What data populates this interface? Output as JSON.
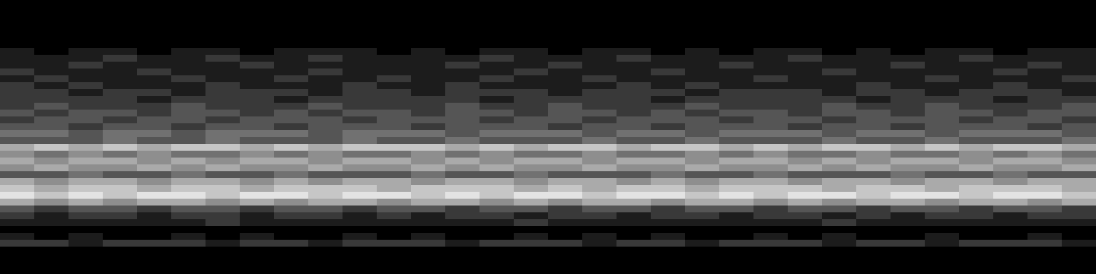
{
  "chart_data": {
    "type": "heatmap",
    "tick_labels": false,
    "colors": [
      "#000000",
      "#ffffff"
    ],
    "zlim": [
      0,
      9
    ],
    "cells": [
      [
        0,
        0,
        0,
        0,
        0,
        0,
        0,
        0,
        0,
        0,
        0,
        0,
        0,
        0,
        0,
        0,
        0,
        0,
        0,
        0,
        0,
        0,
        0,
        0,
        0,
        0,
        0,
        0,
        0,
        0,
        0,
        0
      ],
      [
        0,
        0,
        0,
        0,
        0,
        0,
        0,
        0,
        0,
        0,
        0,
        0,
        0,
        0,
        0,
        0,
        0,
        0,
        0,
        0,
        0,
        0,
        0,
        0,
        0,
        0,
        0,
        0,
        0,
        0,
        0,
        0
      ],
      [
        0,
        0,
        0,
        0,
        0,
        0,
        0,
        0,
        0,
        0,
        0,
        0,
        0,
        0,
        0,
        0,
        0,
        0,
        0,
        0,
        0,
        0,
        0,
        0,
        0,
        0,
        0,
        0,
        0,
        0,
        0,
        0
      ],
      [
        0,
        0,
        0,
        0,
        0,
        0,
        0,
        0,
        0,
        0,
        0,
        0,
        0,
        0,
        0,
        0,
        0,
        0,
        0,
        0,
        0,
        0,
        0,
        0,
        0,
        0,
        0,
        0,
        0,
        0,
        0,
        0
      ],
      [
        0,
        0,
        0,
        0,
        0,
        0,
        0,
        0,
        0,
        0,
        0,
        0,
        0,
        0,
        0,
        0,
        0,
        0,
        0,
        0,
        0,
        0,
        0,
        0,
        0,
        0,
        0,
        0,
        0,
        0,
        0,
        0
      ],
      [
        0,
        0,
        0,
        0,
        0,
        0,
        0,
        0,
        0,
        0,
        0,
        0,
        0,
        0,
        0,
        0,
        0,
        0,
        0,
        0,
        0,
        0,
        0,
        0,
        0,
        0,
        0,
        0,
        0,
        0,
        0,
        0
      ],
      [
        0,
        0,
        0,
        0,
        0,
        0,
        0,
        0,
        0,
        0,
        0,
        0,
        0,
        0,
        0,
        0,
        0,
        0,
        0,
        0,
        0,
        0,
        0,
        0,
        0,
        0,
        0,
        0,
        0,
        0,
        0,
        0
      ],
      [
        1,
        0,
        1,
        1,
        0,
        1,
        1,
        0,
        1,
        1,
        1,
        0,
        1,
        0,
        1,
        1,
        0,
        1,
        1,
        0,
        1,
        0,
        1,
        1,
        0,
        1,
        0,
        1,
        1,
        0,
        1,
        1
      ],
      [
        1,
        1,
        1,
        2,
        1,
        1,
        2,
        1,
        1,
        2,
        1,
        1,
        1,
        1,
        2,
        1,
        1,
        1,
        2,
        1,
        1,
        1,
        1,
        2,
        1,
        1,
        1,
        1,
        2,
        1,
        1,
        1
      ],
      [
        1,
        1,
        2,
        1,
        1,
        1,
        1,
        2,
        1,
        1,
        1,
        1,
        1,
        2,
        1,
        1,
        2,
        1,
        1,
        1,
        1,
        2,
        1,
        1,
        1,
        1,
        2,
        1,
        1,
        1,
        2,
        1
      ],
      [
        2,
        1,
        1,
        1,
        2,
        1,
        1,
        1,
        1,
        2,
        1,
        1,
        1,
        1,
        1,
        2,
        1,
        1,
        1,
        2,
        1,
        1,
        1,
        1,
        2,
        1,
        1,
        1,
        1,
        2,
        1,
        1
      ],
      [
        1,
        2,
        1,
        1,
        1,
        2,
        1,
        1,
        2,
        1,
        1,
        2,
        1,
        1,
        2,
        1,
        1,
        2,
        1,
        1,
        1,
        1,
        2,
        1,
        1,
        1,
        1,
        2,
        1,
        1,
        1,
        2
      ],
      [
        2,
        1,
        2,
        1,
        1,
        1,
        2,
        1,
        1,
        1,
        2,
        1,
        1,
        2,
        1,
        1,
        1,
        1,
        2,
        1,
        2,
        1,
        1,
        1,
        1,
        2,
        1,
        1,
        1,
        2,
        1,
        1
      ],
      [
        2,
        2,
        1,
        2,
        2,
        1,
        2,
        2,
        2,
        1,
        2,
        2,
        1,
        2,
        2,
        2,
        1,
        2,
        2,
        2,
        1,
        2,
        2,
        2,
        1,
        2,
        2,
        1,
        2,
        2,
        2,
        1
      ],
      [
        2,
        2,
        2,
        2,
        1,
        2,
        2,
        2,
        1,
        2,
        2,
        2,
        2,
        2,
        1,
        2,
        2,
        2,
        2,
        1,
        2,
        2,
        2,
        2,
        2,
        1,
        2,
        2,
        2,
        1,
        2,
        2
      ],
      [
        2,
        3,
        2,
        2,
        2,
        3,
        2,
        2,
        2,
        3,
        2,
        2,
        2,
        3,
        2,
        2,
        3,
        2,
        2,
        2,
        3,
        2,
        2,
        2,
        3,
        2,
        2,
        3,
        2,
        2,
        2,
        3
      ],
      [
        3,
        2,
        3,
        3,
        2,
        3,
        3,
        2,
        3,
        2,
        3,
        3,
        2,
        3,
        3,
        2,
        3,
        3,
        2,
        3,
        2,
        3,
        3,
        2,
        3,
        3,
        2,
        3,
        3,
        2,
        3,
        3
      ],
      [
        2,
        3,
        3,
        2,
        3,
        3,
        2,
        3,
        3,
        3,
        2,
        3,
        3,
        3,
        2,
        3,
        3,
        2,
        3,
        3,
        3,
        2,
        3,
        3,
        2,
        3,
        3,
        3,
        2,
        3,
        3,
        2
      ],
      [
        3,
        3,
        2,
        3,
        3,
        2,
        3,
        3,
        2,
        3,
        3,
        3,
        2,
        3,
        3,
        3,
        2,
        3,
        3,
        2,
        3,
        3,
        3,
        2,
        3,
        3,
        2,
        3,
        3,
        3,
        2,
        3
      ],
      [
        4,
        4,
        3,
        4,
        4,
        3,
        4,
        4,
        4,
        3,
        4,
        4,
        4,
        3,
        4,
        4,
        4,
        3,
        4,
        4,
        3,
        4,
        4,
        4,
        3,
        4,
        4,
        3,
        4,
        4,
        4,
        3
      ],
      [
        3,
        3,
        3,
        4,
        3,
        3,
        4,
        3,
        3,
        3,
        4,
        3,
        3,
        4,
        3,
        3,
        3,
        4,
        3,
        3,
        4,
        3,
        3,
        3,
        4,
        3,
        3,
        4,
        3,
        3,
        3,
        4
      ],
      [
        6,
        7,
        6,
        7,
        6,
        7,
        7,
        6,
        7,
        6,
        7,
        7,
        7,
        6,
        7,
        6,
        7,
        7,
        6,
        7,
        7,
        6,
        7,
        6,
        7,
        7,
        6,
        7,
        6,
        7,
        7,
        6
      ],
      [
        5,
        4,
        5,
        4,
        5,
        4,
        4,
        5,
        4,
        5,
        4,
        4,
        5,
        4,
        5,
        4,
        4,
        5,
        4,
        4,
        5,
        4,
        5,
        4,
        4,
        5,
        4,
        4,
        5,
        4,
        5,
        4
      ],
      [
        6,
        5,
        6,
        6,
        5,
        6,
        5,
        6,
        6,
        5,
        6,
        6,
        5,
        6,
        5,
        6,
        6,
        5,
        6,
        6,
        5,
        6,
        6,
        5,
        6,
        5,
        6,
        6,
        5,
        6,
        6,
        5
      ],
      [
        5,
        6,
        5,
        5,
        6,
        5,
        6,
        5,
        5,
        6,
        5,
        5,
        6,
        5,
        6,
        5,
        5,
        6,
        5,
        5,
        6,
        5,
        5,
        6,
        5,
        6,
        5,
        5,
        6,
        5,
        5,
        6
      ],
      [
        3,
        3,
        4,
        3,
        3,
        4,
        3,
        3,
        4,
        3,
        3,
        3,
        4,
        3,
        3,
        4,
        3,
        3,
        3,
        4,
        3,
        3,
        4,
        3,
        3,
        3,
        4,
        3,
        3,
        4,
        3,
        3
      ],
      [
        6,
        5,
        6,
        6,
        5,
        6,
        6,
        5,
        6,
        5,
        6,
        6,
        5,
        6,
        6,
        5,
        6,
        6,
        5,
        6,
        5,
        6,
        6,
        5,
        6,
        6,
        5,
        6,
        6,
        5,
        6,
        6
      ],
      [
        7,
        6,
        7,
        7,
        6,
        7,
        7,
        6,
        7,
        7,
        7,
        6,
        7,
        7,
        7,
        6,
        7,
        6,
        7,
        7,
        6,
        7,
        7,
        7,
        6,
        7,
        7,
        6,
        7,
        7,
        7,
        6
      ],
      [
        8,
        7,
        8,
        7,
        8,
        8,
        7,
        8,
        8,
        7,
        8,
        8,
        7,
        8,
        7,
        8,
        8,
        7,
        8,
        8,
        7,
        8,
        7,
        8,
        8,
        7,
        8,
        8,
        7,
        8,
        8,
        7
      ],
      [
        6,
        5,
        6,
        5,
        6,
        6,
        5,
        6,
        5,
        6,
        6,
        5,
        6,
        6,
        5,
        6,
        5,
        6,
        6,
        5,
        6,
        6,
        5,
        6,
        5,
        6,
        6,
        5,
        6,
        6,
        5,
        6
      ],
      [
        3,
        2,
        3,
        3,
        2,
        3,
        3,
        2,
        3,
        3,
        2,
        3,
        3,
        2,
        3,
        3,
        2,
        3,
        3,
        2,
        3,
        3,
        2,
        3,
        3,
        2,
        3,
        3,
        2,
        3,
        3,
        2
      ],
      [
        2,
        1,
        2,
        2,
        1,
        2,
        2,
        1,
        2,
        2,
        1,
        2,
        1,
        2,
        2,
        1,
        2,
        2,
        1,
        2,
        2,
        1,
        2,
        2,
        1,
        2,
        1,
        2,
        2,
        1,
        2,
        2
      ],
      [
        1,
        1,
        1,
        1,
        1,
        1,
        2,
        1,
        1,
        1,
        1,
        1,
        1,
        1,
        1,
        2,
        1,
        1,
        1,
        1,
        1,
        1,
        1,
        1,
        2,
        1,
        1,
        1,
        1,
        1,
        1,
        1
      ],
      [
        0,
        0,
        0,
        0,
        0,
        0,
        0,
        0,
        0,
        0,
        0,
        0,
        0,
        0,
        0,
        0,
        0,
        0,
        0,
        0,
        0,
        0,
        0,
        0,
        0,
        0,
        0,
        0,
        0,
        0,
        0,
        0
      ],
      [
        1,
        0,
        1,
        0,
        0,
        1,
        0,
        1,
        0,
        0,
        1,
        0,
        1,
        0,
        0,
        1,
        0,
        1,
        0,
        1,
        0,
        0,
        1,
        0,
        1,
        0,
        0,
        1,
        0,
        0,
        1,
        0
      ],
      [
        2,
        2,
        1,
        2,
        2,
        2,
        1,
        2,
        2,
        1,
        2,
        2,
        2,
        1,
        2,
        2,
        2,
        1,
        2,
        2,
        1,
        2,
        2,
        2,
        1,
        2,
        2,
        1,
        2,
        2,
        2,
        1
      ],
      [
        0,
        0,
        0,
        0,
        0,
        0,
        0,
        0,
        0,
        0,
        0,
        0,
        0,
        0,
        0,
        0,
        0,
        0,
        0,
        0,
        0,
        0,
        0,
        0,
        0,
        0,
        0,
        0,
        0,
        0,
        0,
        0
      ],
      [
        0,
        0,
        0,
        0,
        0,
        0,
        0,
        0,
        0,
        0,
        0,
        0,
        0,
        0,
        0,
        0,
        0,
        0,
        0,
        0,
        0,
        0,
        0,
        0,
        0,
        0,
        0,
        0,
        0,
        0,
        0,
        0
      ],
      [
        0,
        0,
        0,
        0,
        0,
        0,
        0,
        0,
        0,
        0,
        0,
        0,
        0,
        0,
        0,
        0,
        0,
        0,
        0,
        0,
        0,
        0,
        0,
        0,
        0,
        0,
        0,
        0,
        0,
        0,
        0,
        0
      ],
      [
        0,
        0,
        0,
        0,
        0,
        0,
        0,
        0,
        0,
        0,
        0,
        0,
        0,
        0,
        0,
        0,
        0,
        0,
        0,
        0,
        0,
        0,
        0,
        0,
        0,
        0,
        0,
        0,
        0,
        0,
        0,
        0
      ]
    ]
  }
}
